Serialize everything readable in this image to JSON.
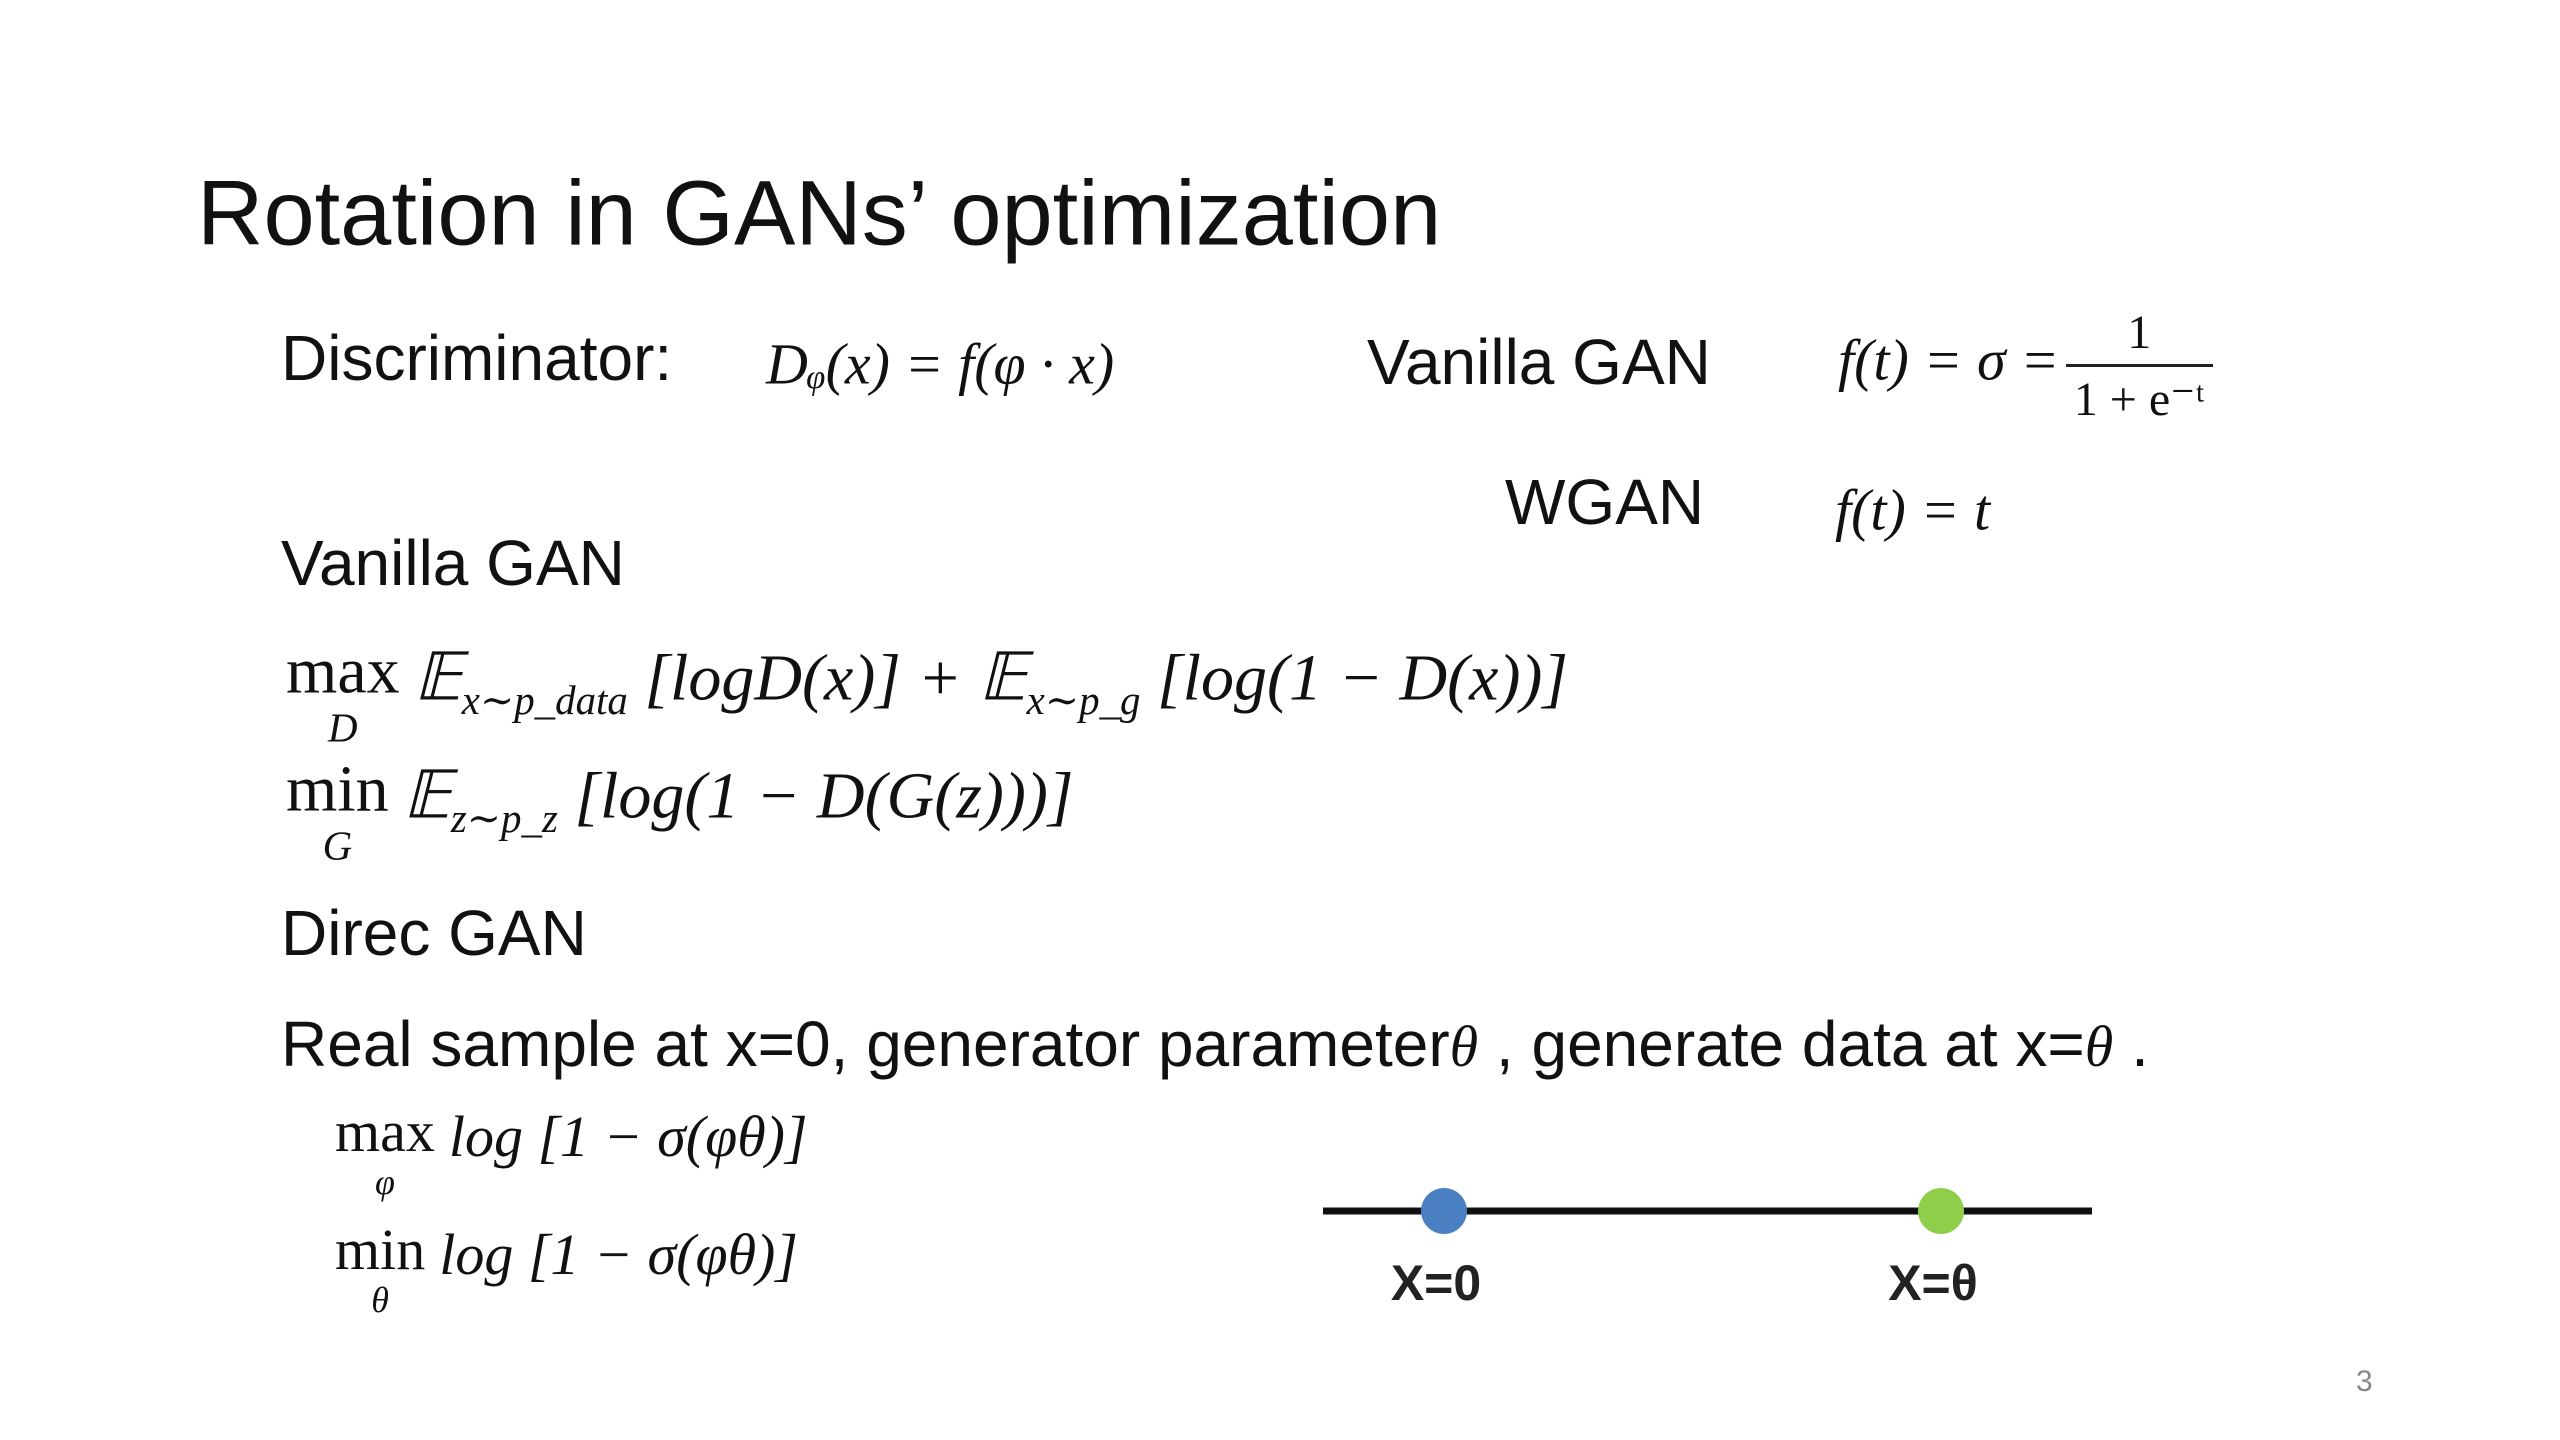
{
  "title": "Rotation in GANs’ optimization",
  "discriminator": {
    "label": "Discriminator:",
    "formula": "Dᵩ(x) = f(φ · x)"
  },
  "variants": [
    {
      "name": "Vanilla GAN",
      "formula": "f(t) = σ =",
      "numerator": "1",
      "denominator": "1 + e⁻ᵗ"
    },
    {
      "name": "WGAN",
      "formula": "f(t) = t"
    }
  ],
  "vanilla": {
    "heading": "Vanilla GAN",
    "objectives": [
      {
        "op": "max",
        "under": "D",
        "expr": [
          {
            "t": "𝔼"
          },
          {
            "sub": "x∼p_data"
          },
          {
            "t": " [logD(x)] + 𝔼"
          },
          {
            "sub": "x∼p_g"
          },
          {
            "t": " [log(1 − D(x))]"
          }
        ]
      },
      {
        "op": "min",
        "under": "G",
        "expr": [
          {
            "t": "𝔼"
          },
          {
            "sub": "z∼p_z"
          },
          {
            "t": " [log(1 − D(G(z)))]"
          }
        ]
      }
    ]
  },
  "direc": {
    "heading": "Direc GAN",
    "sentence": [
      "Real sample at x=0, generator parameter",
      "θ",
      " , generate data at x=",
      "θ",
      " ."
    ],
    "objectives": [
      {
        "op": "max",
        "under": "φ",
        "expr": [
          {
            "t": "log [1 − σ(φθ)]"
          }
        ]
      },
      {
        "op": "min",
        "under": "θ",
        "expr": [
          {
            "t": "log [1 − σ(φθ)]"
          }
        ]
      }
    ]
  },
  "diagram": {
    "points": [
      {
        "label": "X=0",
        "color": "#4a7fc1"
      },
      {
        "label": "X=θ",
        "color": "#8fce4a"
      }
    ]
  },
  "page_number": "3"
}
